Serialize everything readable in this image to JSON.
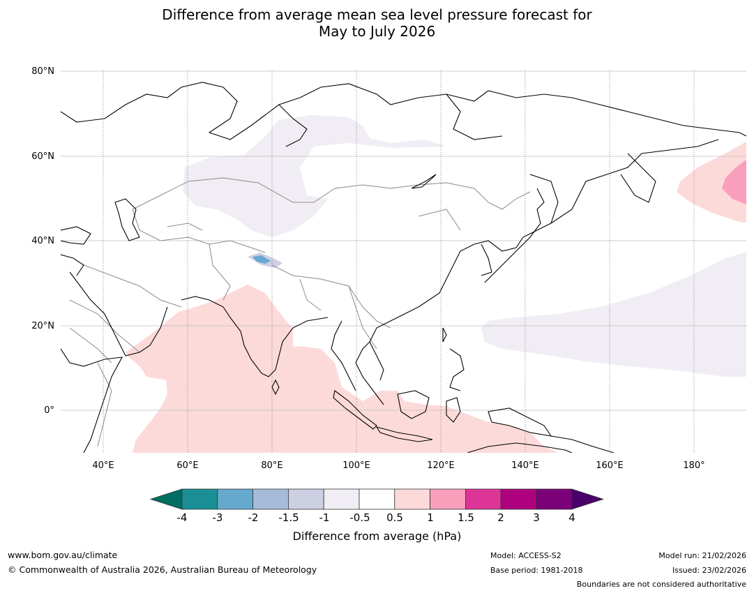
{
  "title": {
    "line1": "Difference from average mean sea level pressure forecast for",
    "line2": "May to July 2026"
  },
  "map": {
    "lat_labels": [
      "80°N",
      "60°N",
      "40°N",
      "20°N",
      "0°"
    ],
    "lon_labels": [
      "40°E",
      "60°E",
      "80°E",
      "100°E",
      "120°E",
      "140°E",
      "160°E",
      "180°"
    ],
    "lat_range": [
      -10,
      80
    ],
    "lon_range": [
      30,
      192
    ]
  },
  "colorbar": {
    "ticks": [
      "-4",
      "-3",
      "-2",
      "-1.5",
      "-1",
      "-0.5",
      "0.5",
      "1",
      "1.5",
      "2",
      "3",
      "4"
    ],
    "colors": [
      "#006e60",
      "#1a8f96",
      "#66a9cf",
      "#a6bbd9",
      "#cdcfe3",
      "#f1edf4",
      "#ffffff",
      "#fddada",
      "#f99fbb",
      "#dd3497",
      "#ae017e",
      "#7a0177",
      "#49006a"
    ],
    "label": "Difference from average (hPa)"
  },
  "footer": {
    "url": "www.bom.gov.au/climate",
    "copyright": "© Commonwealth of Australia 2026, Australian Bureau of Meteorology",
    "model": "Model: ACCESS-S2",
    "base_period": "Base period: 1981-2018",
    "model_run": "Model run: 21/02/2026",
    "issued": "Issued: 23/02/2026",
    "disclaimer": "Boundaries are not considered authoritative"
  }
}
